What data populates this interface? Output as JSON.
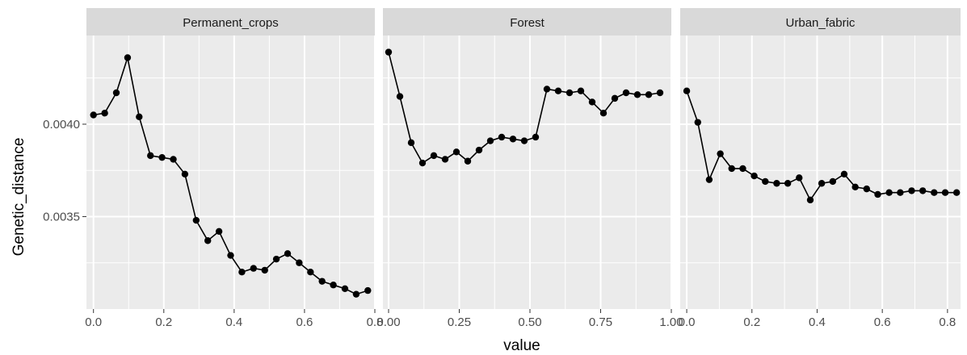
{
  "chart_data": {
    "type": "line",
    "facet_layout": "1 row, 3 columns, free x scales, shared y scale",
    "xlabel": "value",
    "ylabel": "Genetic_distance",
    "ylim": [
      0.003,
      0.00448
    ],
    "y_ticks": [
      0.0035,
      0.004
    ],
    "y_tick_labels": [
      "0.0035",
      "0.0040"
    ],
    "grid": true,
    "legend": "none",
    "colors": {
      "panel_background": "#ebebeb",
      "strip_background": "#d9d9d9",
      "gridline": "#ffffff",
      "series": "#000000"
    },
    "facets": [
      {
        "name": "Permanent_crops",
        "xlim": [
          -0.02,
          0.8
        ],
        "x_ticks": [
          0.0,
          0.2,
          0.4,
          0.6,
          0.8
        ],
        "x_tick_labels": [
          "0.0",
          "0.2",
          "0.4",
          "0.6",
          "0.8"
        ],
        "x": [
          0.0,
          0.032,
          0.065,
          0.097,
          0.13,
          0.162,
          0.195,
          0.227,
          0.26,
          0.292,
          0.325,
          0.357,
          0.39,
          0.422,
          0.455,
          0.487,
          0.52,
          0.552,
          0.585,
          0.617,
          0.65,
          0.682,
          0.715,
          0.747,
          0.78
        ],
        "y": [
          0.00405,
          0.00406,
          0.00417,
          0.00436,
          0.00404,
          0.00383,
          0.00382,
          0.00381,
          0.00373,
          0.00348,
          0.00337,
          0.00342,
          0.00329,
          0.0032,
          0.00322,
          0.00321,
          0.00327,
          0.0033,
          0.00325,
          0.0032,
          0.00315,
          0.00313,
          0.00311,
          0.00308,
          0.0031
        ]
      },
      {
        "name": "Forest",
        "xlim": [
          -0.02,
          1.0
        ],
        "x_ticks": [
          0.0,
          0.25,
          0.5,
          0.75,
          1.0
        ],
        "x_tick_labels": [
          "0.00",
          "0.25",
          "0.50",
          "0.75",
          "1.00"
        ],
        "x": [
          0.0,
          0.04,
          0.08,
          0.12,
          0.16,
          0.2,
          0.24,
          0.28,
          0.32,
          0.36,
          0.4,
          0.44,
          0.48,
          0.52,
          0.56,
          0.6,
          0.64,
          0.68,
          0.72,
          0.76,
          0.8,
          0.84,
          0.88,
          0.92,
          0.96
        ],
        "y": [
          0.00439,
          0.00415,
          0.0039,
          0.00379,
          0.00383,
          0.00381,
          0.00385,
          0.0038,
          0.00386,
          0.00391,
          0.00393,
          0.00392,
          0.00391,
          0.00393,
          0.00419,
          0.00418,
          0.00417,
          0.00418,
          0.00412,
          0.00406,
          0.00414,
          0.00417,
          0.00416,
          0.00416,
          0.00417
        ]
      },
      {
        "name": "Urban_fabric",
        "xlim": [
          -0.02,
          0.84
        ],
        "x_ticks": [
          0.0,
          0.2,
          0.4,
          0.6,
          0.8
        ],
        "x_tick_labels": [
          "0.0",
          "0.2",
          "0.4",
          "0.6",
          "0.8"
        ],
        "x": [
          0.0,
          0.034,
          0.069,
          0.103,
          0.138,
          0.172,
          0.207,
          0.241,
          0.276,
          0.31,
          0.345,
          0.379,
          0.414,
          0.448,
          0.483,
          0.517,
          0.552,
          0.586,
          0.621,
          0.655,
          0.69,
          0.724,
          0.759,
          0.793,
          0.828
        ],
        "y": [
          0.00418,
          0.00401,
          0.0037,
          0.00384,
          0.00376,
          0.00376,
          0.00372,
          0.00369,
          0.00368,
          0.00368,
          0.00371,
          0.00359,
          0.00368,
          0.00369,
          0.00373,
          0.00366,
          0.00365,
          0.00362,
          0.00363,
          0.00363,
          0.00364,
          0.00364,
          0.00363,
          0.00363,
          0.00363
        ]
      }
    ]
  }
}
